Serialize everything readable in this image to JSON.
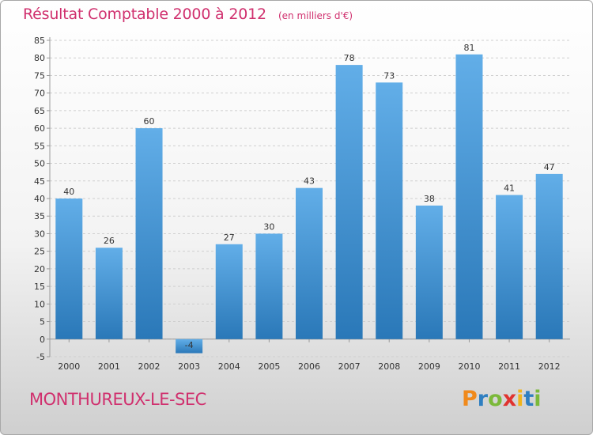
{
  "header": {
    "title": "Résultat Comptable 2000 à 2012",
    "subtitle": "(en milliers d'€)"
  },
  "footer": {
    "place": "MONTHUREUX-LE-SEC",
    "logo_text": "Proxiti"
  },
  "colors": {
    "title": "#d0306e",
    "bar_top": "#62aee8",
    "bar_bottom": "#2a78b8",
    "logo": [
      "#f08a1c",
      "#2f7fc1",
      "#7bb93a",
      "#e0332f",
      "#f0b41c",
      "#2f7fc1",
      "#7bb93a"
    ]
  },
  "chart_data": {
    "type": "bar",
    "title": "Résultat Comptable 2000 à 2012",
    "subtitle": "(en milliers d'€)",
    "categories": [
      "2000",
      "2001",
      "2002",
      "2003",
      "2004",
      "2005",
      "2006",
      "2007",
      "2008",
      "2009",
      "2010",
      "2011",
      "2012"
    ],
    "values": [
      40,
      26,
      60,
      -4,
      27,
      30,
      43,
      78,
      73,
      38,
      81,
      41,
      47
    ],
    "ylim": [
      -5,
      85
    ],
    "yticks": [
      -5,
      0,
      5,
      10,
      15,
      20,
      25,
      30,
      35,
      40,
      45,
      50,
      55,
      60,
      65,
      70,
      75,
      80,
      85
    ],
    "grid": true,
    "legend": "none"
  }
}
